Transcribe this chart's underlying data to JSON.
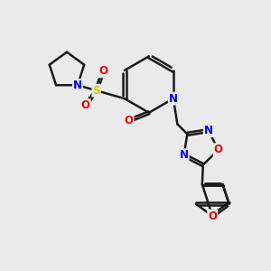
{
  "bg_color": "#eaeaea",
  "bond_color": "#1a1a1a",
  "bond_width": 1.8,
  "atom_colors": {
    "N": "#0000ee",
    "O": "#ee0000",
    "S": "#cccc00",
    "C": "#1a1a1a"
  },
  "figsize": [
    3.0,
    3.0
  ],
  "dpi": 100
}
